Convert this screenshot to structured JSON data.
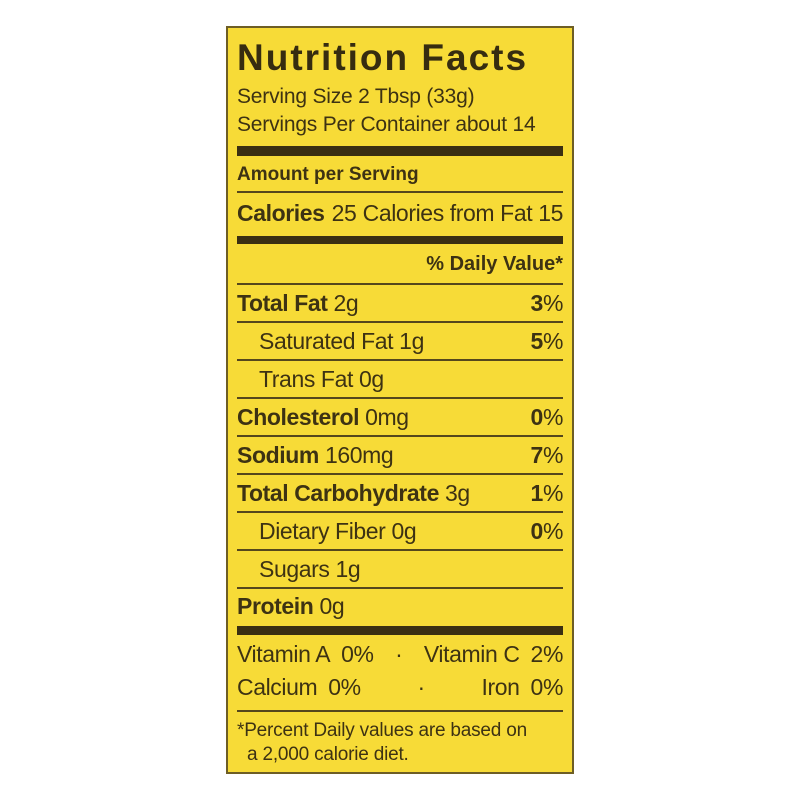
{
  "colors": {
    "label_background": "#f7db37",
    "ink": "#3d3213",
    "rule": "#55471c"
  },
  "header": {
    "title": "Nutrition Facts",
    "serving_size": "Serving Size 2 Tbsp (33g)",
    "servings_per_container": "Servings Per Container about 14"
  },
  "amount_per_serving": "Amount per Serving",
  "calories": {
    "label": "Calories",
    "value": "25",
    "from_fat_label": "Calories from Fat",
    "from_fat_value": "15"
  },
  "daily_value_header": "% Daily Value*",
  "nutrients": [
    {
      "label": "Total Fat",
      "amount": "2g",
      "dv": "3",
      "dv_sign": "%"
    },
    {
      "label": "Saturated Fat",
      "amount": "1g",
      "dv": "5",
      "dv_sign": "%"
    },
    {
      "label": "Trans Fat",
      "amount": "0g"
    },
    {
      "label": "Cholesterol",
      "amount": "0mg",
      "dv": "0",
      "dv_sign": "%"
    },
    {
      "label": "Sodium",
      "amount": "160mg",
      "dv": "7",
      "dv_sign": "%"
    },
    {
      "label": "Total Carbohydrate",
      "amount": "3g",
      "dv": "1",
      "dv_sign": "%"
    },
    {
      "label": "Dietary Fiber",
      "amount": "0g",
      "dv": "0",
      "dv_sign": "%"
    },
    {
      "label": "Sugars",
      "amount": "1g"
    },
    {
      "label": "Protein",
      "amount": "0g"
    }
  ],
  "vitamins": {
    "row1": {
      "left_label": "Vitamin A",
      "left_value": "0%",
      "separator": "·",
      "right_label": "Vitamin C",
      "right_value": "2%"
    },
    "row2": {
      "left_label": "Calcium",
      "left_value": "0%",
      "separator": "·",
      "right_label": "Iron",
      "right_value": "0%"
    }
  },
  "footnote": {
    "line1": "*Percent Daily values are based on",
    "line2": "a 2,000 calorie diet."
  }
}
